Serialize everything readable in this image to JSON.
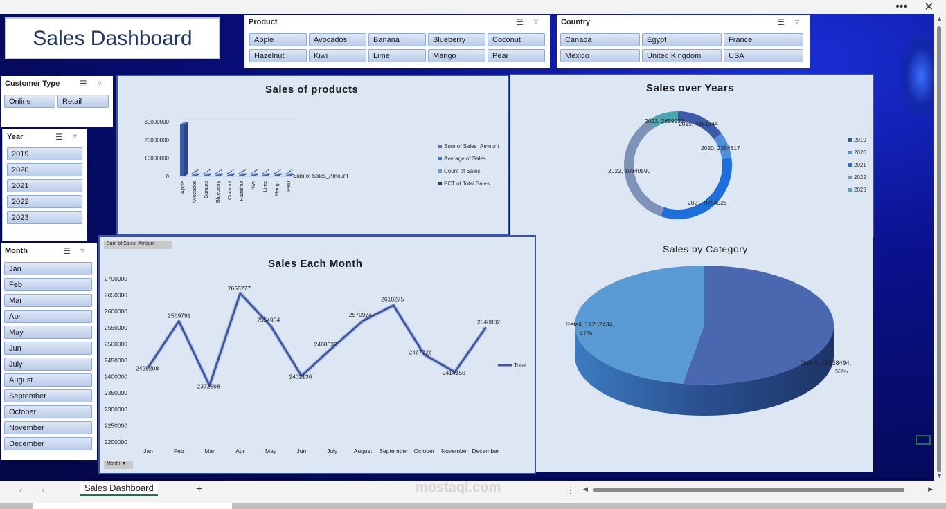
{
  "title": "Sales Dashboard",
  "slicers": {
    "product": {
      "header": "Product",
      "items": [
        "Apple",
        "Avocados",
        "Banana",
        "Blueberry",
        "Coconut",
        "Hazelnut",
        "Kiwi",
        "Lime",
        "Mango",
        "Pear"
      ]
    },
    "country": {
      "header": "Country",
      "items": [
        "Canada",
        "Egypt",
        "France",
        "Mexico",
        "United Kingdom",
        "USA"
      ]
    },
    "customer_type": {
      "header": "Customer Type",
      "items": [
        "Online",
        "Retail"
      ]
    },
    "year": {
      "header": "Year",
      "items": [
        "2019",
        "2020",
        "2021",
        "2022",
        "2023"
      ]
    },
    "month": {
      "header": "Month",
      "items": [
        "Jan",
        "Feb",
        "Mar",
        "Apr",
        "May",
        "Jun",
        "July",
        "August",
        "September",
        "October",
        "November",
        "December"
      ]
    }
  },
  "chart_data": [
    {
      "type": "bar",
      "title": "Sales of products",
      "categories": [
        "Apple",
        "Avocados",
        "Banana",
        "Blueberry",
        "Coconut",
        "Hazelnut",
        "Kiwi",
        "Lime",
        "Mango",
        "Pear"
      ],
      "series": [
        {
          "name": "Sum of Sales_Amount",
          "values": [
            28500000,
            0,
            0,
            0,
            0,
            0,
            0,
            0,
            0,
            0
          ]
        }
      ],
      "y_ticks": [
        "0",
        "10000000",
        "20000000",
        "30000000"
      ],
      "ylim": [
        0,
        30000000
      ],
      "depth_label": "Sum of Sales_Amount",
      "legend": [
        "Sum of Sales_Amount",
        "Average of Sales",
        "Count of Sales",
        "PCT of Total Sales"
      ],
      "legend_colors": [
        "#4472c4",
        "#2e75d6",
        "#5ba3c9",
        "#203864"
      ],
      "legend_position": "right"
    },
    {
      "type": "pie",
      "title": "Sales over Years",
      "categories": [
        "2019",
        "2020",
        "2021",
        "2022",
        "2023"
      ],
      "values": [
        4481344,
        2354817,
        9754925,
        10840590,
        2659252
      ],
      "labels": [
        "2019, 4481344",
        "2020, 2354817",
        "2021, 9754925",
        "2022, 10840590",
        "2023, 2659252"
      ],
      "colors": [
        "#3a5ba8",
        "#4f8fdc",
        "#1e6fd9",
        "#7f93b8",
        "#4aa6b0"
      ],
      "legend_position": "right"
    },
    {
      "type": "line",
      "title": "Sales Each Month",
      "x": [
        "Jan",
        "Feb",
        "Mar",
        "Apr",
        "May",
        "Jun",
        "July",
        "August",
        "September",
        "October",
        "November",
        "December"
      ],
      "series": [
        {
          "name": "Total",
          "values": [
            2428208,
            2569791,
            2372598,
            2655277,
            2554954,
            2402136,
            2488037,
            2570974,
            2618275,
            2467726,
            2414150,
            2548802
          ]
        }
      ],
      "labels": [
        "2428208",
        "2569791",
        "2372598",
        "2655277",
        "2554954",
        "2402136",
        "2488037",
        "2570974",
        "2618275",
        "2467726",
        "2414150",
        "2548802"
      ],
      "y_ticks": [
        "2200000",
        "2250000",
        "2300000",
        "2350000",
        "2400000",
        "2450000",
        "2500000",
        "2550000",
        "2600000",
        "2650000",
        "2700000"
      ],
      "ylim": [
        2200000,
        2700000
      ],
      "field_button": "Sum of Sales_Amount",
      "axis_button": "Month",
      "legend_position": "right"
    },
    {
      "type": "pie",
      "title": "Sales by Category",
      "categories": [
        "Online",
        "Retail"
      ],
      "values": [
        15838494,
        14252434
      ],
      "labels": [
        [
          "Online, 15838494,",
          "53%"
        ],
        [
          "Retail, 14252434,",
          "47%"
        ]
      ],
      "colors": [
        "#4a68b0",
        "#5b9bd5"
      ]
    }
  ],
  "sheet_tab": "Sales Dashboard",
  "watermark": "mostaql.com"
}
